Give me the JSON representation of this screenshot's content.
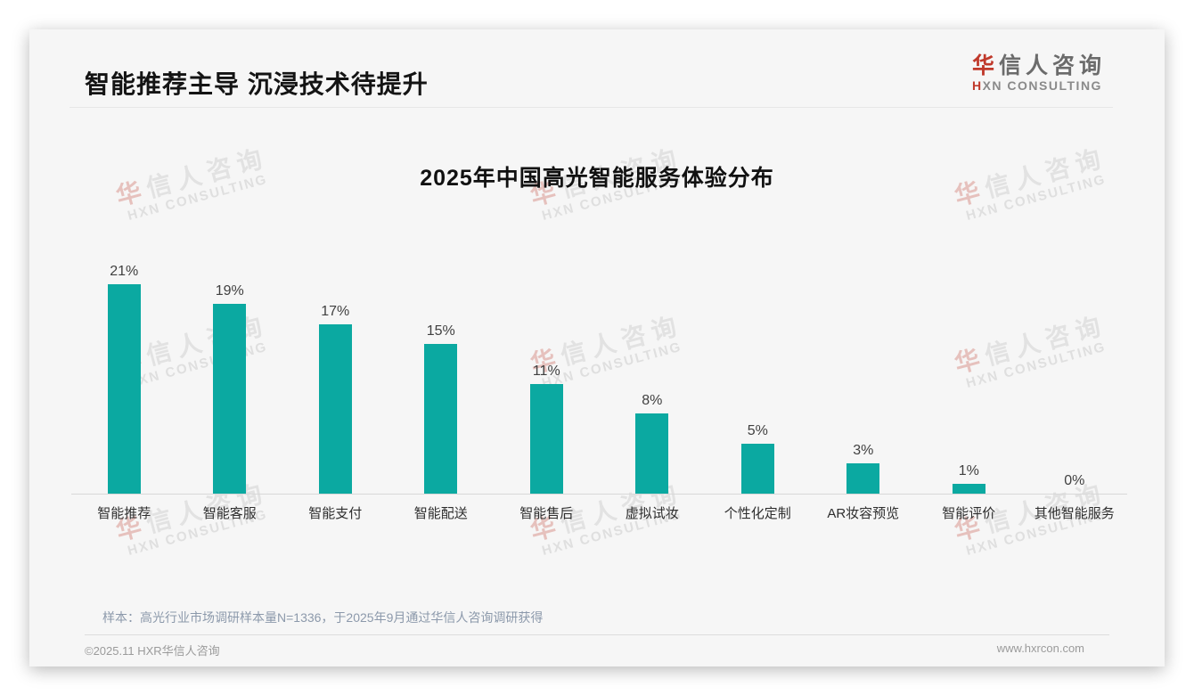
{
  "slide": {
    "title": "智能推荐主导 沉浸技术待提升",
    "logo": {
      "cn_first": "华",
      "cn_rest": "信人咨询",
      "en_first": "H",
      "en_rest": "XN CONSULTING"
    },
    "watermark": {
      "cn_first": "华",
      "cn_rest": "信人咨询",
      "en": "HXN CONSULTING"
    },
    "footnote": "样本：高光行业市场调研样本量N=1336，于2025年9月通过华信人咨询调研获得",
    "footer": {
      "left": "©2025.11 HXR华信人咨询",
      "right": "www.hxrcon.com"
    }
  },
  "chart_data": {
    "type": "bar",
    "title": "2025年中国高光智能服务体验分布",
    "categories": [
      "智能推荐",
      "智能客服",
      "智能支付",
      "智能配送",
      "智能售后",
      "虚拟试妆",
      "个性化定制",
      "AR妆容预览",
      "智能评价",
      "其他智能服务"
    ],
    "values": [
      21,
      19,
      17,
      15,
      11,
      8,
      5,
      3,
      1,
      0
    ],
    "value_labels": [
      "21%",
      "19%",
      "17%",
      "15%",
      "11%",
      "8%",
      "5%",
      "3%",
      "1%",
      "0%"
    ],
    "unit": "%",
    "xlabel": "",
    "ylabel": "",
    "ylim": [
      0,
      23
    ],
    "grid": false,
    "legend": "none",
    "bar_color": "#0ba9a1"
  },
  "colors": {
    "accent_red": "#c0392b",
    "bar_teal": "#0ba9a1",
    "card_bg": "#f6f6f6",
    "footnote_text": "#8c99ab"
  }
}
